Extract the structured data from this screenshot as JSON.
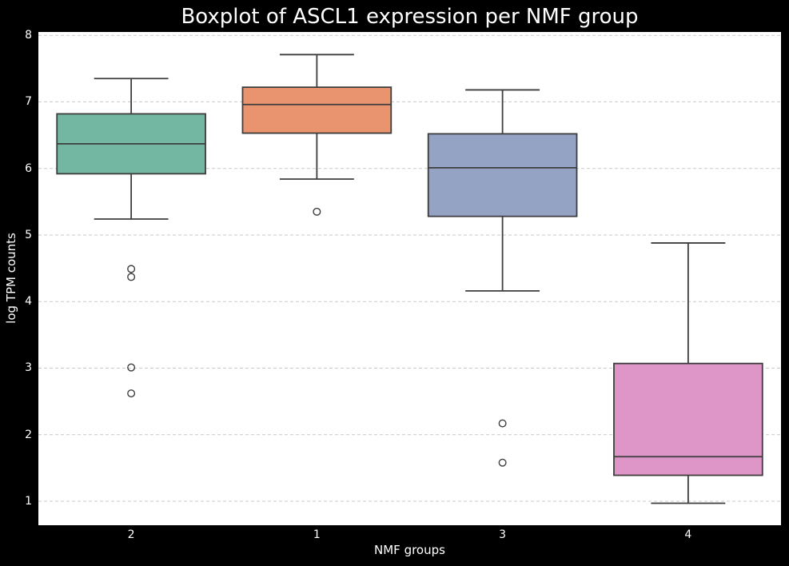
{
  "chart_data": {
    "type": "boxplot",
    "title": "Boxplot of ASCL1 expression per NMF group",
    "xlabel": "NMF groups",
    "ylabel": "log TPM counts",
    "ylim": [
      0.64,
      8.05
    ],
    "yticks": [
      1,
      2,
      3,
      4,
      5,
      6,
      7,
      8
    ],
    "grid": "horizontal-dashed",
    "legend": "none",
    "categories": [
      "2",
      "1",
      "3",
      "4"
    ],
    "series": [
      {
        "category": "2",
        "color": "#73b7a2",
        "whisker_low": 5.24,
        "q1": 5.92,
        "median": 6.37,
        "q3": 6.82,
        "whisker_high": 7.35,
        "outliers": [
          4.49,
          4.37,
          3.01,
          2.62
        ]
      },
      {
        "category": "1",
        "color": "#e9946f",
        "whisker_low": 5.84,
        "q1": 6.53,
        "median": 6.96,
        "q3": 7.22,
        "whisker_high": 7.71,
        "outliers": [
          5.35
        ]
      },
      {
        "category": "3",
        "color": "#94a3c4",
        "whisker_low": 4.16,
        "q1": 5.28,
        "median": 6.01,
        "q3": 6.52,
        "whisker_high": 7.18,
        "outliers": [
          2.17,
          1.58
        ]
      },
      {
        "category": "4",
        "color": "#dd96c7",
        "whisker_low": 0.97,
        "q1": 1.39,
        "median": 1.67,
        "q3": 3.07,
        "whisker_high": 4.88,
        "outliers": []
      }
    ],
    "styles": {
      "figure_background": "#000000",
      "plot_background": "#ffffff",
      "text_color": "#ffffff",
      "box_edge_color": "#3d3d3d",
      "grid_color": "#c9c9c9"
    }
  }
}
